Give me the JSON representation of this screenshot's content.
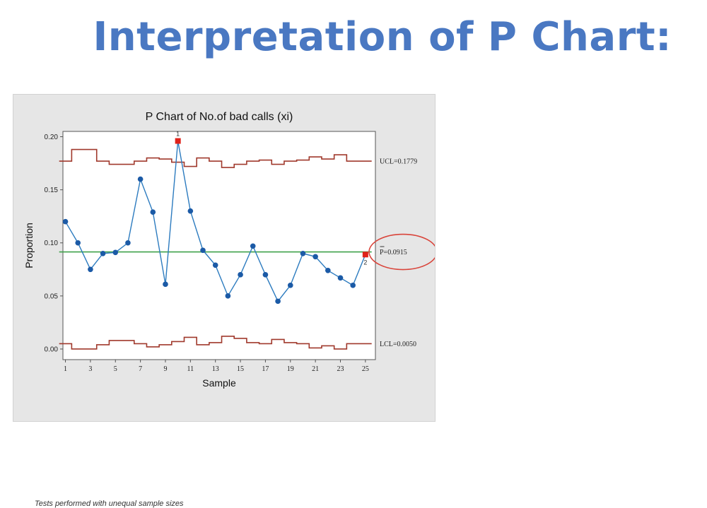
{
  "slide": {
    "title": "Interpretation of P Chart:"
  },
  "colors": {
    "title": "#4a78c2",
    "data_line": "#2c7bbf",
    "data_point": "#1b5aa6",
    "limit_line": "#a0392c",
    "center_line": "#3fa14a",
    "flag_point": "#e0221a",
    "highlight_circle": "#d9443a"
  },
  "chart_data": {
    "type": "line",
    "title": "P Chart of No.of bad calls (xi)",
    "xlabel": "Sample",
    "ylabel": "Proportion",
    "xlim": [
      0.8,
      25.8
    ],
    "ylim": [
      -0.01,
      0.205
    ],
    "xticks": [
      1,
      3,
      5,
      7,
      9,
      11,
      13,
      15,
      17,
      19,
      21,
      23,
      25
    ],
    "yticks": [
      0.0,
      0.05,
      0.1,
      0.15,
      0.2
    ],
    "ytick_labels": [
      "0.00",
      "0.05",
      "0.10",
      "0.15",
      "0.20"
    ],
    "x": [
      1,
      2,
      3,
      4,
      5,
      6,
      7,
      8,
      9,
      10,
      11,
      12,
      13,
      14,
      15,
      16,
      17,
      18,
      19,
      20,
      21,
      22,
      23,
      24,
      25
    ],
    "series": [
      {
        "values": [
          0.12,
          0.1,
          0.075,
          0.09,
          0.091,
          0.1,
          0.16,
          0.129,
          0.061,
          0.196,
          0.13,
          0.093,
          0.079,
          0.05,
          0.07,
          0.097,
          0.07,
          0.045,
          0.06,
          0.09,
          0.087,
          0.074,
          0.067,
          0.06,
          0.089
        ]
      }
    ],
    "ucl": [
      0.177,
      0.188,
      0.188,
      0.177,
      0.174,
      0.174,
      0.177,
      0.18,
      0.179,
      0.176,
      0.172,
      0.18,
      0.177,
      0.171,
      0.174,
      0.177,
      0.178,
      0.174,
      0.177,
      0.178,
      0.181,
      0.179,
      0.183,
      0.177,
      0.177
    ],
    "lcl": [
      0.005,
      0.0,
      0.0,
      0.004,
      0.008,
      0.008,
      0.005,
      0.002,
      0.004,
      0.007,
      0.011,
      0.004,
      0.006,
      0.012,
      0.01,
      0.006,
      0.005,
      0.009,
      0.006,
      0.005,
      0.001,
      0.003,
      0.0,
      0.005,
      0.005
    ],
    "center": 0.0915,
    "ucl_label": "UCL=0.1779",
    "center_label": "P=0.0915",
    "lcl_label": "LCL=0.0050",
    "flagged": [
      {
        "x": 10,
        "label": "1"
      },
      {
        "x": 25,
        "label": "2"
      }
    ],
    "footnote": "Tests performed with unequal sample sizes",
    "grid": false
  }
}
